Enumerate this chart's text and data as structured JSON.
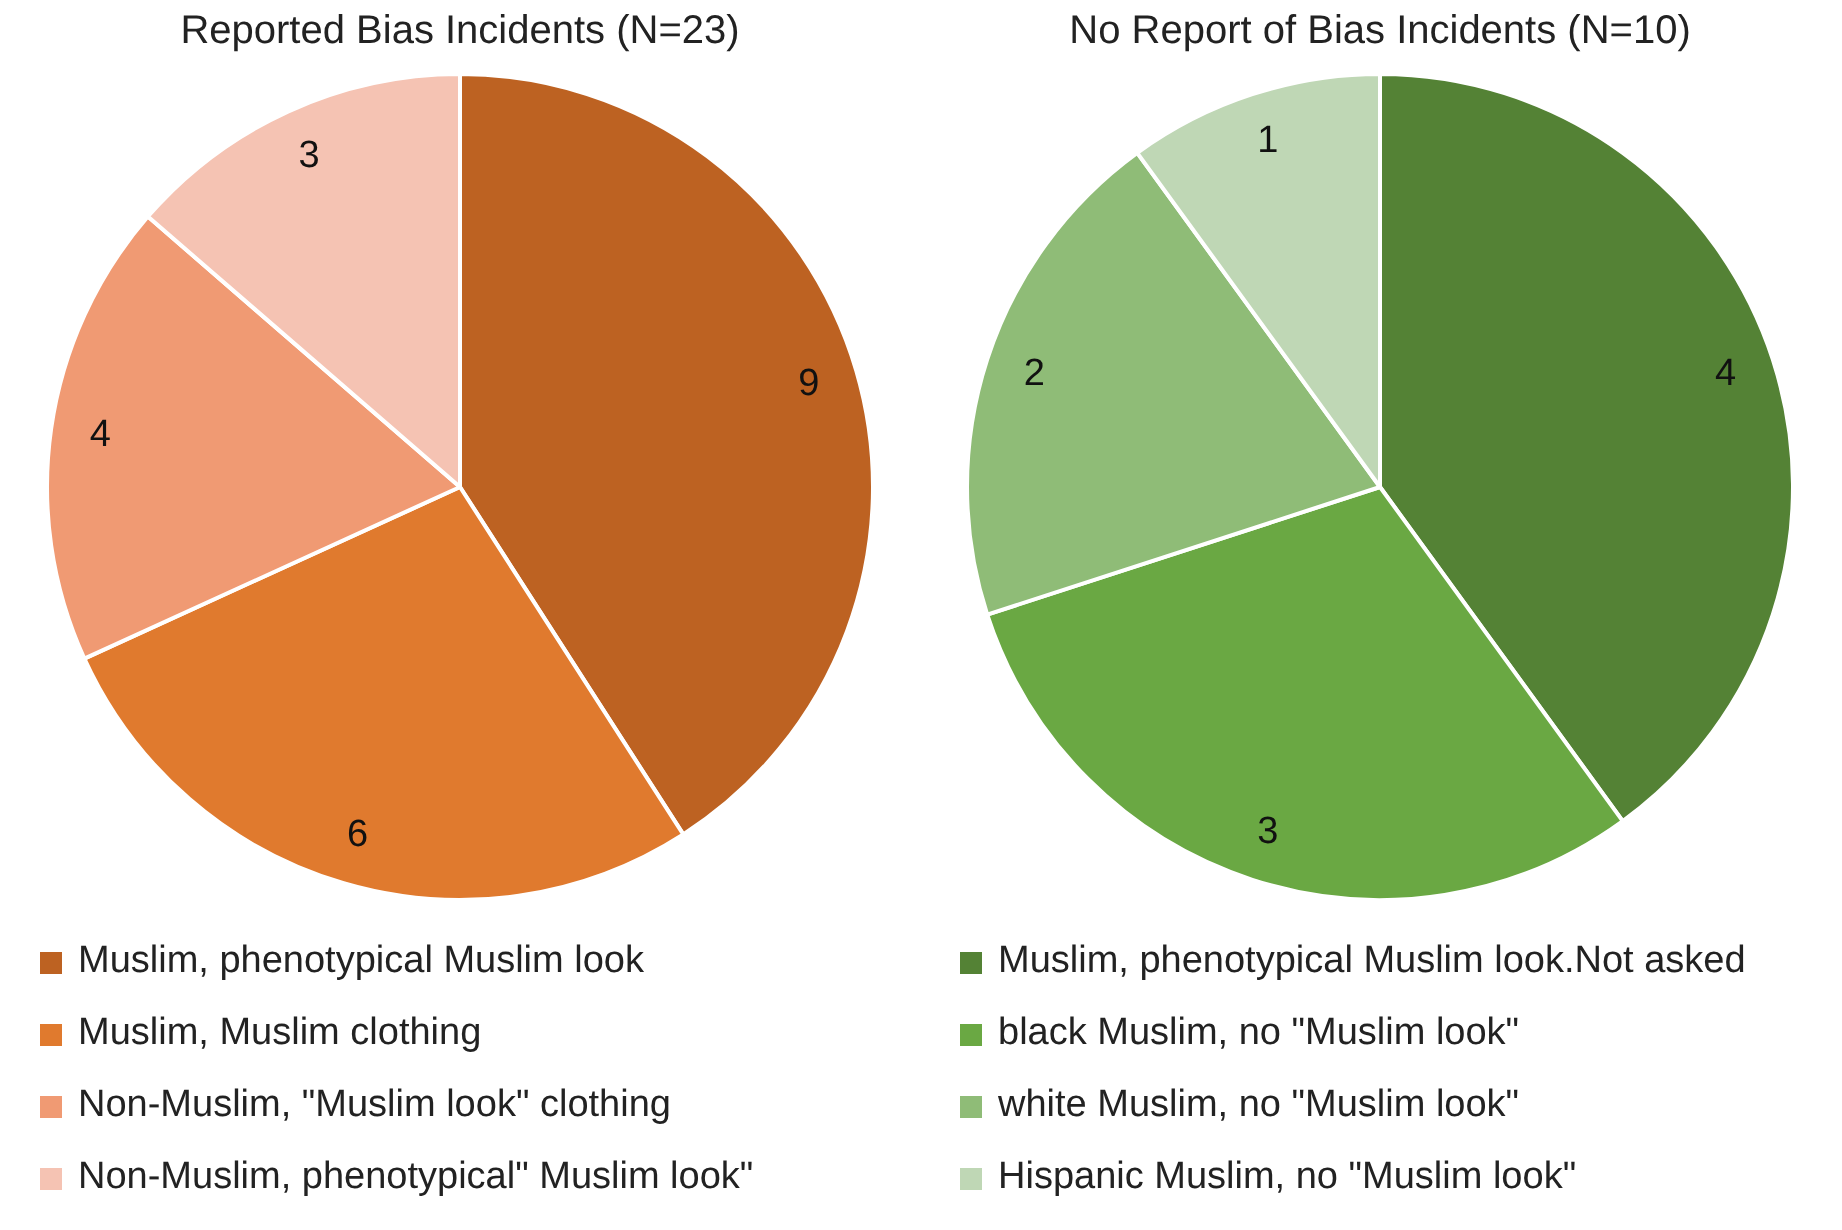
{
  "chart_data": [
    {
      "type": "pie",
      "title": "Reported Bias Incidents (N=23)",
      "categories": [
        "Muslim, phenotypical Muslim look",
        "Muslim, Muslim clothing",
        "Non-Muslim, \"Muslim look\" clothing",
        "Non-Muslim, phenotypical\" Muslim look\""
      ],
      "values": [
        9,
        6,
        4,
        3
      ],
      "colors": [
        "#bd6222",
        "#e07a2e",
        "#f09a73",
        "#f5c3b3"
      ],
      "data_labels": true,
      "legend": "bottom"
    },
    {
      "type": "pie",
      "title": "No Report of Bias Incidents (N=10)",
      "categories": [
        "Muslim, phenotypical Muslim look.Not asked",
        "black Muslim, no \"Muslim look\"",
        "white Muslim, no \"Muslim look\"",
        "Hispanic Muslim, no \"Muslim look\""
      ],
      "values": [
        4,
        3,
        2,
        1
      ],
      "colors": [
        "#548235",
        "#6aa843",
        "#8fbc77",
        "#bfd7b5"
      ],
      "data_labels": true,
      "legend": "bottom"
    }
  ]
}
